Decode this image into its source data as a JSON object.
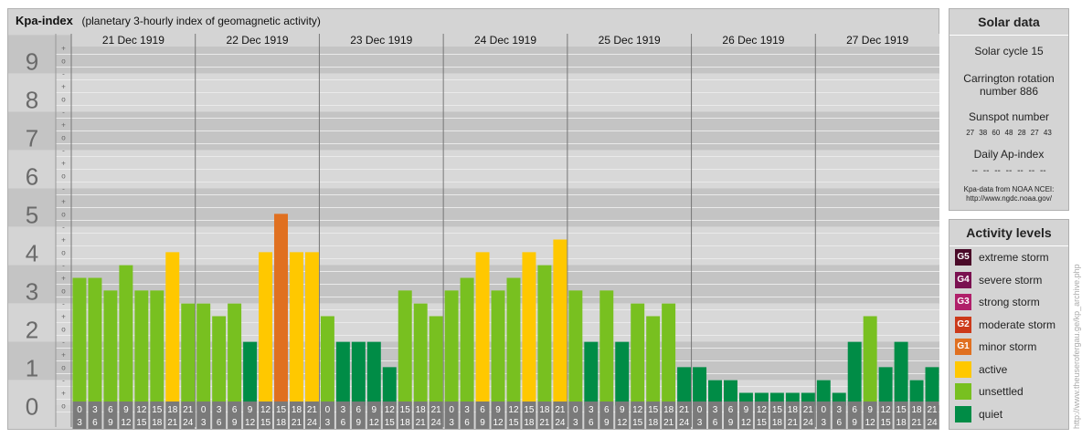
{
  "header": {
    "title": "Kpa-index",
    "subtitle": "(planetary 3-hourly index of geomagnetic activity)"
  },
  "chart_data": {
    "type": "bar",
    "days": [
      "21 Dec 1919",
      "22 Dec 1919",
      "23 Dec 1919",
      "24 Dec 1919",
      "25 Dec 1919",
      "26 Dec 1919",
      "27 Dec 1919"
    ],
    "y_major_labels": [
      "0",
      "1",
      "2",
      "3",
      "4",
      "5",
      "6",
      "7",
      "8",
      "9"
    ],
    "y_minor_labels": [
      "+",
      "-",
      "o"
    ],
    "ylim": [
      0,
      9.33
    ],
    "interval_start_labels": [
      "0",
      "3",
      "6",
      "9",
      "12",
      "15",
      "18",
      "21"
    ],
    "interval_end_labels": [
      "3",
      "6",
      "9",
      "12",
      "15",
      "18",
      "21",
      "24"
    ],
    "values": [
      [
        3.0,
        3.0,
        2.67,
        3.33,
        2.67,
        2.67,
        3.67,
        2.33
      ],
      [
        2.33,
        2.0,
        2.33,
        1.33,
        3.67,
        4.67,
        3.67,
        3.67
      ],
      [
        2.0,
        1.33,
        1.33,
        1.33,
        0.67,
        2.67,
        2.33,
        2.0
      ],
      [
        2.67,
        3.0,
        3.67,
        2.67,
        3.0,
        3.67,
        3.33,
        4.0
      ],
      [
        2.67,
        1.33,
        2.67,
        1.33,
        2.33,
        2.0,
        2.33,
        0.67
      ],
      [
        0.67,
        0.33,
        0.33,
        0.0,
        0.0,
        0.0,
        0.0,
        0.0
      ],
      [
        0.33,
        0.0,
        1.33,
        2.0,
        0.67,
        1.33,
        0.33,
        0.67
      ]
    ],
    "color_thresholds": {
      "quiet": "below 2-",
      "unsettled": "2- to 3+",
      "active": "4- to 4+",
      "G1": "5- to 5+"
    }
  },
  "solar": {
    "title": "Solar data",
    "solar_cycle": "Solar cycle 15",
    "carrington_line1": "Carrington rotation",
    "carrington_line2": "number 886",
    "sunspot_label": "Sunspot number",
    "sunspot_numbers": "27 38 60 48 28 27 43",
    "ap_label": "Daily Ap-index",
    "ap_values": "-- -- -- -- -- -- --",
    "credit_line1": "Kpa-data from NOAA NCEI:",
    "credit_line2": "http://www.ngdc.noaa.gov/"
  },
  "levels": {
    "title": "Activity levels",
    "items": [
      {
        "badge": "G5",
        "label": "extreme storm",
        "color": "#4a0a28"
      },
      {
        "badge": "G4",
        "label": "severe storm",
        "color": "#7a1050"
      },
      {
        "badge": "G3",
        "label": "strong storm",
        "color": "#b0206a"
      },
      {
        "badge": "G2",
        "label": "moderate storm",
        "color": "#cc3a1a"
      },
      {
        "badge": "G1",
        "label": "minor storm",
        "color": "#e07020"
      },
      {
        "badge": "",
        "label": "active",
        "color": "#ffc800"
      },
      {
        "badge": "",
        "label": "unsettled",
        "color": "#78c020"
      },
      {
        "badge": "",
        "label": "quiet",
        "color": "#008c46"
      }
    ]
  },
  "vertical_credit": "http://www.theuserofergau.ge/kp_archive.php",
  "colors": {
    "quiet": "#008c46",
    "unsettled": "#78c020",
    "active": "#ffc800",
    "g1": "#e07020"
  }
}
